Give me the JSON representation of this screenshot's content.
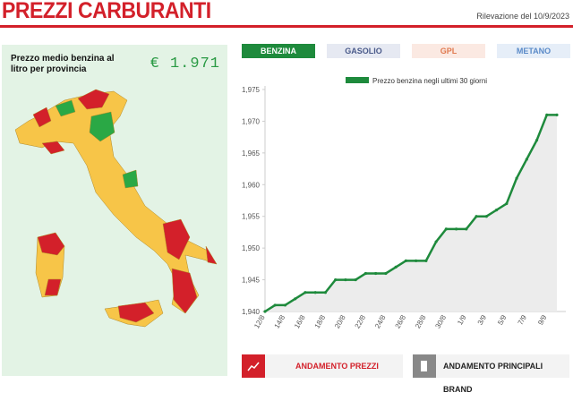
{
  "header": {
    "title": "PREZZI CARBURANTI",
    "date": "Rilevazione del 10/9/2023"
  },
  "map_panel": {
    "label": "Prezzo medio benzina al litro per provincia",
    "price": "€ 1.971"
  },
  "tabs": [
    "BENZINA",
    "GASOLIO",
    "GPL",
    "METANO"
  ],
  "buttons": [
    "ANDAMENTO PREZZI",
    "ANDAMENTO PRINCIPALI BRAND"
  ],
  "chart_data": {
    "type": "line",
    "categories": [
      "12/8",
      null,
      "14/8",
      null,
      "16/8",
      null,
      "18/8",
      null,
      "20/8",
      null,
      "22/8",
      null,
      "24/8",
      null,
      "26/8",
      null,
      "28/8",
      null,
      "30/8",
      null,
      "1/9",
      null,
      "3/9",
      null,
      "5/9",
      null,
      "7/9",
      null,
      "9/9",
      null
    ],
    "series": [
      {
        "name": "Prezzo benzina negli ultimi 30 giorni",
        "color": "#1e8a3c",
        "values": [
          1.94,
          1.941,
          1.941,
          1.942,
          1.943,
          1.943,
          1.943,
          1.945,
          1.945,
          1.945,
          1.946,
          1.946,
          1.946,
          1.947,
          1.948,
          1.948,
          1.948,
          1.951,
          1.953,
          1.953,
          1.953,
          1.955,
          1.955,
          1.956,
          1.957,
          1.961,
          1.964,
          1.967,
          1.971,
          1.971
        ]
      }
    ],
    "ylim": [
      1.94,
      1.975
    ],
    "yticks": [
      {
        "value": 1.94,
        "label": "1,940"
      },
      {
        "value": 1.945,
        "label": "1,945"
      },
      {
        "value": 1.95,
        "label": "1,950"
      },
      {
        "value": 1.955,
        "label": "1,955"
      },
      {
        "value": 1.96,
        "label": "1,960"
      },
      {
        "value": 1.965,
        "label": "1,965"
      },
      {
        "value": 1.97,
        "label": "1,970"
      },
      {
        "value": 1.975,
        "label": "1,975"
      }
    ],
    "area_fill": "#ececec"
  }
}
